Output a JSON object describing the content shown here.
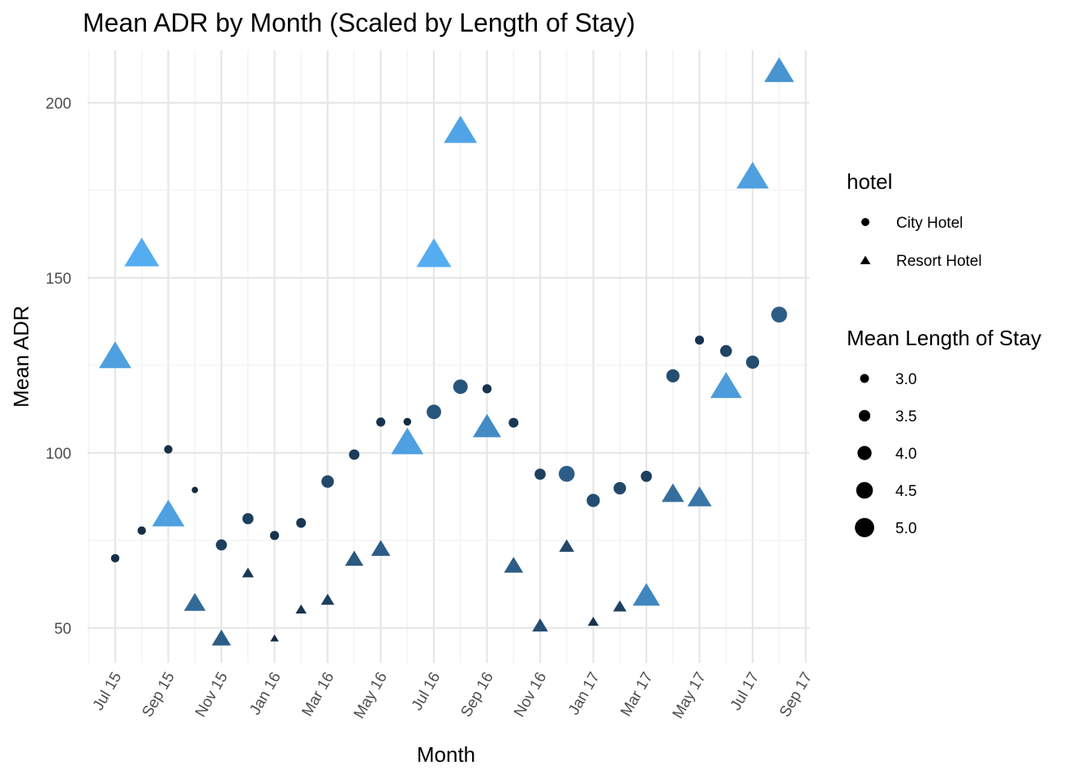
{
  "chart_data": {
    "type": "scatter",
    "title": "Mean ADR by Month (Scaled by Length of Stay)",
    "xlabel": "Month",
    "ylabel": "Mean ADR",
    "x_ticks": [
      "Jul 15",
      "Sep 15",
      "Nov 15",
      "Jan 16",
      "Mar 16",
      "May 16",
      "Jul 16",
      "Sep 16",
      "Nov 16",
      "Jan 17",
      "Mar 17",
      "May 17",
      "Jul 17",
      "Sep 17"
    ],
    "y_ticks": [
      50,
      100,
      150,
      200
    ],
    "ylim": [
      40,
      215
    ],
    "xlim": [
      "2015-06",
      "2017-09"
    ],
    "grid": true,
    "legend_placement": "right",
    "colors": {
      "dark": "#132b43",
      "light": "#56b1f7"
    },
    "series": [
      {
        "name": "City Hotel",
        "shape": "circle",
        "points": [
          {
            "x": "2015-07",
            "y": 69.9,
            "stay": 2.9
          },
          {
            "x": "2015-08",
            "y": 77.8,
            "stay": 2.9
          },
          {
            "x": "2015-09",
            "y": 101.0,
            "stay": 2.9
          },
          {
            "x": "2015-10",
            "y": 89.4,
            "stay": 2.6
          },
          {
            "x": "2015-11",
            "y": 73.7,
            "stay": 3.3
          },
          {
            "x": "2015-12",
            "y": 81.2,
            "stay": 3.3
          },
          {
            "x": "2016-01",
            "y": 76.4,
            "stay": 3.0
          },
          {
            "x": "2016-02",
            "y": 80.0,
            "stay": 3.1
          },
          {
            "x": "2016-03",
            "y": 91.8,
            "stay": 3.5
          },
          {
            "x": "2016-04",
            "y": 99.5,
            "stay": 3.2
          },
          {
            "x": "2016-05",
            "y": 108.8,
            "stay": 3.0
          },
          {
            "x": "2016-06",
            "y": 108.9,
            "stay": 2.8
          },
          {
            "x": "2016-07",
            "y": 111.7,
            "stay": 3.8
          },
          {
            "x": "2016-08",
            "y": 118.9,
            "stay": 3.8
          },
          {
            "x": "2016-09",
            "y": 118.3,
            "stay": 3.0
          },
          {
            "x": "2016-10",
            "y": 108.6,
            "stay": 3.1
          },
          {
            "x": "2016-11",
            "y": 93.9,
            "stay": 3.3
          },
          {
            "x": "2016-12",
            "y": 94.0,
            "stay": 4.0
          },
          {
            "x": "2017-01",
            "y": 86.4,
            "stay": 3.6
          },
          {
            "x": "2017-02",
            "y": 89.9,
            "stay": 3.5
          },
          {
            "x": "2017-03",
            "y": 93.3,
            "stay": 3.3
          },
          {
            "x": "2017-04",
            "y": 122.0,
            "stay": 3.6
          },
          {
            "x": "2017-05",
            "y": 132.2,
            "stay": 3.0
          },
          {
            "x": "2017-06",
            "y": 129.1,
            "stay": 3.4
          },
          {
            "x": "2017-07",
            "y": 125.9,
            "stay": 3.6
          },
          {
            "x": "2017-08",
            "y": 139.5,
            "stay": 4.0
          }
        ]
      },
      {
        "name": "Resort Hotel",
        "shape": "triangle",
        "points": [
          {
            "x": "2015-07",
            "y": 127.1,
            "stay": 5.6
          },
          {
            "x": "2015-08",
            "y": 156.4,
            "stay": 5.9
          },
          {
            "x": "2015-09",
            "y": 81.9,
            "stay": 5.6
          },
          {
            "x": "2015-10",
            "y": 56.8,
            "stay": 4.3
          },
          {
            "x": "2015-11",
            "y": 46.7,
            "stay": 4.0
          },
          {
            "x": "2015-12",
            "y": 65.5,
            "stay": 3.1
          },
          {
            "x": "2016-01",
            "y": 46.9,
            "stay": 2.7
          },
          {
            "x": "2016-02",
            "y": 55.1,
            "stay": 3.0
          },
          {
            "x": "2016-03",
            "y": 57.8,
            "stay": 3.3
          },
          {
            "x": "2016-04",
            "y": 69.4,
            "stay": 3.9
          },
          {
            "x": "2016-05",
            "y": 72.3,
            "stay": 4.0
          },
          {
            "x": "2016-06",
            "y": 102.5,
            "stay": 5.6
          },
          {
            "x": "2016-07",
            "y": 156.2,
            "stay": 5.9
          },
          {
            "x": "2016-08",
            "y": 191.5,
            "stay": 5.7
          },
          {
            "x": "2016-09",
            "y": 107.0,
            "stay": 5.1
          },
          {
            "x": "2016-10",
            "y": 67.5,
            "stay": 4.0
          },
          {
            "x": "2016-11",
            "y": 50.4,
            "stay": 3.6
          },
          {
            "x": "2016-12",
            "y": 73.1,
            "stay": 3.5
          },
          {
            "x": "2017-01",
            "y": 51.6,
            "stay": 3.0
          },
          {
            "x": "2017-02",
            "y": 55.9,
            "stay": 3.3
          },
          {
            "x": "2017-03",
            "y": 58.8,
            "stay": 5.0
          },
          {
            "x": "2017-04",
            "y": 88.0,
            "stay": 4.4
          },
          {
            "x": "2017-05",
            "y": 86.9,
            "stay": 4.6
          },
          {
            "x": "2017-06",
            "y": 118.5,
            "stay": 5.5
          },
          {
            "x": "2017-07",
            "y": 178.4,
            "stay": 5.6
          },
          {
            "x": "2017-08",
            "y": 208.6,
            "stay": 5.3
          }
        ]
      }
    ],
    "legend": {
      "shape_title": "hotel",
      "shape_items": [
        {
          "label": "City Hotel",
          "shape": "circle"
        },
        {
          "label": "Resort Hotel",
          "shape": "triangle"
        }
      ],
      "size_title": "Mean Length of Stay",
      "size_items": [
        {
          "label": "3.0",
          "value": 3.0
        },
        {
          "label": "3.5",
          "value": 3.5
        },
        {
          "label": "4.0",
          "value": 4.0
        },
        {
          "label": "4.5",
          "value": 4.5
        },
        {
          "label": "5.0",
          "value": 5.0
        }
      ]
    }
  }
}
